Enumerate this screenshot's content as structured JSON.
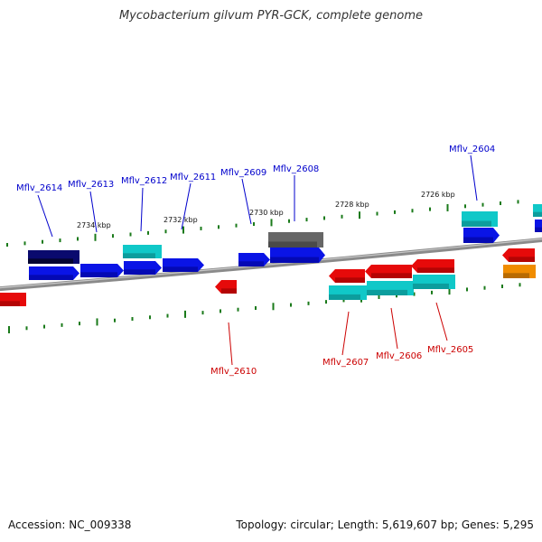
{
  "title": "Mycobacterium gilvum PYR-GCK, complete genome",
  "footer": {
    "accession": "Accession: NC_009338",
    "summary": "Topology: circular; Length: 5,619,607 bp; Genes: 5,295"
  },
  "colors": {
    "backbone": "#8a8a8a",
    "tick": "#1a7a1a",
    "label_top": "#0000cc",
    "label_bottom": "#cc0000",
    "blue": "#0a14e6",
    "navy": "#0a0a6e",
    "cyan": "#10c8c8",
    "gray": "#666666",
    "red": "#e60a0a",
    "orange": "#f08c00"
  },
  "scale_labels": [
    "2734 kbp",
    "2732 kbp",
    "2730 kbp",
    "2728 kbp",
    "2726 kbp"
  ],
  "genes_top": [
    "Mflv_2614",
    "Mflv_2613",
    "Mflv_2612",
    "Mflv_2611",
    "Mflv_2609",
    "Mflv_2608",
    "Mflv_2604"
  ],
  "genes_bottom": [
    "Mflv_2610",
    "Mflv_2607",
    "Mflv_2606",
    "Mflv_2605"
  ]
}
